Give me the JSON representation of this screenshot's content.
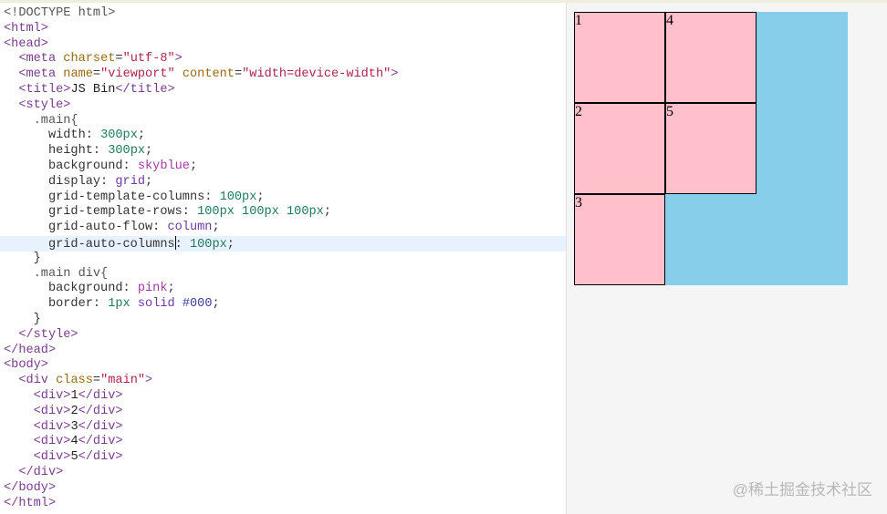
{
  "editor": {
    "active_line": 15,
    "cursor": {
      "line": 15,
      "after_token": 1
    },
    "lines": [
      [
        [
          "<!DOCTYPE html>",
          "sel"
        ]
      ],
      [
        [
          "<html>",
          "tag"
        ]
      ],
      [
        [
          "<head>",
          "tag"
        ]
      ],
      [
        [
          "  ",
          "txt"
        ],
        [
          "<meta ",
          "tag"
        ],
        [
          "charset",
          "attr"
        ],
        [
          "=",
          "punct"
        ],
        [
          "\"utf-8\"",
          "str"
        ],
        [
          ">",
          "tag"
        ]
      ],
      [
        [
          "  ",
          "txt"
        ],
        [
          "<meta ",
          "tag"
        ],
        [
          "name",
          "attr"
        ],
        [
          "=",
          "punct"
        ],
        [
          "\"viewport\"",
          "str"
        ],
        [
          " ",
          "txt"
        ],
        [
          "content",
          "attr"
        ],
        [
          "=",
          "punct"
        ],
        [
          "\"width=device-width\"",
          "str"
        ],
        [
          ">",
          "tag"
        ]
      ],
      [
        [
          "  ",
          "txt"
        ],
        [
          "<title>",
          "tag"
        ],
        [
          "JS Bin",
          "txt"
        ],
        [
          "</title>",
          "tag"
        ]
      ],
      [
        [
          "  ",
          "txt"
        ],
        [
          "<style>",
          "tag"
        ]
      ],
      [
        [
          "    ",
          "txt"
        ],
        [
          ".main{",
          "sel"
        ]
      ],
      [
        [
          "      ",
          "txt"
        ],
        [
          "width: ",
          "prop"
        ],
        [
          "300px",
          "num"
        ],
        [
          ";",
          "punct"
        ]
      ],
      [
        [
          "      ",
          "txt"
        ],
        [
          "height: ",
          "prop"
        ],
        [
          "300px",
          "num"
        ],
        [
          ";",
          "punct"
        ]
      ],
      [
        [
          "      ",
          "txt"
        ],
        [
          "background: ",
          "prop"
        ],
        [
          "skyblue",
          "atom"
        ],
        [
          ";",
          "punct"
        ]
      ],
      [
        [
          "      ",
          "txt"
        ],
        [
          "display: ",
          "prop"
        ],
        [
          "grid",
          "kw"
        ],
        [
          ";",
          "punct"
        ]
      ],
      [
        [
          "      ",
          "txt"
        ],
        [
          "grid-template-columns: ",
          "prop"
        ],
        [
          "100px",
          "num"
        ],
        [
          ";",
          "punct"
        ]
      ],
      [
        [
          "      ",
          "txt"
        ],
        [
          "grid-template-rows: ",
          "prop"
        ],
        [
          "100px 100px 100px",
          "num"
        ],
        [
          ";",
          "punct"
        ]
      ],
      [
        [
          "      ",
          "txt"
        ],
        [
          "grid-auto-flow: ",
          "prop"
        ],
        [
          "column",
          "kw"
        ],
        [
          ";",
          "punct"
        ]
      ],
      [
        [
          "      ",
          "txt"
        ],
        [
          "grid-auto-columns",
          "prop"
        ],
        [
          ": ",
          "prop"
        ],
        [
          "100px",
          "num"
        ],
        [
          ";",
          "punct"
        ]
      ],
      [
        [
          "    ",
          "txt"
        ],
        [
          "}",
          "punct"
        ]
      ],
      [
        [
          "    ",
          "txt"
        ],
        [
          ".main div{",
          "sel"
        ]
      ],
      [
        [
          "      ",
          "txt"
        ],
        [
          "background: ",
          "prop"
        ],
        [
          "pink",
          "atom"
        ],
        [
          ";",
          "punct"
        ]
      ],
      [
        [
          "      ",
          "txt"
        ],
        [
          "border: ",
          "prop"
        ],
        [
          "1px",
          "num"
        ],
        [
          " ",
          "txt"
        ],
        [
          "solid",
          "kw"
        ],
        [
          " ",
          "txt"
        ],
        [
          "#000",
          "hex"
        ],
        [
          ";",
          "punct"
        ]
      ],
      [
        [
          "    ",
          "txt"
        ],
        [
          "}",
          "punct"
        ]
      ],
      [
        [
          "  ",
          "txt"
        ],
        [
          "</style>",
          "tag"
        ]
      ],
      [
        [
          "</head>",
          "tag"
        ]
      ],
      [
        [
          "<body>",
          "tag"
        ]
      ],
      [
        [
          "  ",
          "txt"
        ],
        [
          "<div ",
          "tag"
        ],
        [
          "class",
          "attr"
        ],
        [
          "=",
          "punct"
        ],
        [
          "\"main\"",
          "str"
        ],
        [
          ">",
          "tag"
        ]
      ],
      [
        [
          "    ",
          "txt"
        ],
        [
          "<div>",
          "tag"
        ],
        [
          "1",
          "txt"
        ],
        [
          "</div>",
          "tag"
        ]
      ],
      [
        [
          "    ",
          "txt"
        ],
        [
          "<div>",
          "tag"
        ],
        [
          "2",
          "txt"
        ],
        [
          "</div>",
          "tag"
        ]
      ],
      [
        [
          "    ",
          "txt"
        ],
        [
          "<div>",
          "tag"
        ],
        [
          "3",
          "txt"
        ],
        [
          "</div>",
          "tag"
        ]
      ],
      [
        [
          "    ",
          "txt"
        ],
        [
          "<div>",
          "tag"
        ],
        [
          "4",
          "txt"
        ],
        [
          "</div>",
          "tag"
        ]
      ],
      [
        [
          "    ",
          "txt"
        ],
        [
          "<div>",
          "tag"
        ],
        [
          "5",
          "txt"
        ],
        [
          "</div>",
          "tag"
        ]
      ],
      [
        [
          "  ",
          "txt"
        ],
        [
          "</div>",
          "tag"
        ]
      ],
      [
        [
          "</body>",
          "tag"
        ]
      ],
      [
        [
          "</html>",
          "tag"
        ]
      ]
    ]
  },
  "preview": {
    "container_color": "#87ceeb",
    "cell_color": "#ffc0cb",
    "cells": [
      "1",
      "2",
      "3",
      "4",
      "5"
    ]
  },
  "watermark": "@稀土掘金技术社区"
}
